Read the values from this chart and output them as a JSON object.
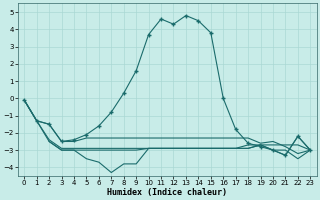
{
  "xlabel": "Humidex (Indice chaleur)",
  "bg_color": "#c8ece8",
  "grid_color": "#aad8d4",
  "line_color": "#1a6b6b",
  "xlim": [
    -0.5,
    23.5
  ],
  "ylim": [
    -4.5,
    5.5
  ],
  "yticks": [
    -4,
    -3,
    -2,
    -1,
    0,
    1,
    2,
    3,
    4,
    5
  ],
  "xticks": [
    0,
    1,
    2,
    3,
    4,
    5,
    6,
    7,
    8,
    9,
    10,
    11,
    12,
    13,
    14,
    15,
    16,
    17,
    18,
    19,
    20,
    21,
    22,
    23
  ],
  "series1_x": [
    0,
    1,
    2,
    3,
    4,
    5,
    6,
    7,
    8,
    9,
    10,
    11,
    12,
    13,
    14,
    15,
    16,
    17,
    18,
    19,
    20,
    21,
    22,
    23
  ],
  "series1_y": [
    -0.1,
    -1.3,
    -1.5,
    -2.5,
    -2.5,
    -2.3,
    -2.3,
    -2.3,
    -2.3,
    -2.3,
    -2.3,
    -2.3,
    -2.3,
    -2.3,
    -2.3,
    -2.3,
    -2.3,
    -2.3,
    -2.3,
    -2.6,
    -2.5,
    -2.8,
    -3.2,
    -3.0
  ],
  "series2_x": [
    0,
    1,
    2,
    3,
    4,
    5,
    6,
    7,
    8,
    9,
    10,
    11,
    12,
    13,
    14,
    15,
    16,
    17,
    18,
    19,
    20,
    21,
    22,
    23
  ],
  "series2_y": [
    -0.1,
    -1.3,
    -2.4,
    -2.9,
    -2.9,
    -2.9,
    -2.9,
    -2.9,
    -2.9,
    -2.9,
    -2.9,
    -2.9,
    -2.9,
    -2.9,
    -2.9,
    -2.9,
    -2.9,
    -2.9,
    -2.9,
    -2.7,
    -2.7,
    -2.7,
    -2.7,
    -3.0
  ],
  "series3_x": [
    0,
    1,
    2,
    3,
    4,
    5,
    6,
    7,
    8,
    9,
    10,
    11,
    12,
    13,
    14,
    15,
    16,
    17,
    18,
    19,
    20,
    21,
    22,
    23
  ],
  "series3_y": [
    -0.1,
    -1.3,
    -2.5,
    -3.0,
    -3.0,
    -3.5,
    -3.7,
    -4.3,
    -3.8,
    -3.8,
    -2.9,
    -2.9,
    -2.9,
    -2.9,
    -2.9,
    -2.9,
    -2.9,
    -2.9,
    -2.9,
    -2.7,
    -3.0,
    -3.3,
    -2.2,
    -3.0
  ],
  "series_main_x": [
    0,
    1,
    2,
    3,
    4,
    5,
    6,
    7,
    8,
    9,
    10,
    11,
    12,
    13,
    14,
    15,
    16,
    17,
    18,
    19,
    20,
    21,
    22,
    23
  ],
  "series_main_y": [
    -0.1,
    -1.3,
    -1.5,
    -2.5,
    -2.4,
    -2.1,
    -1.6,
    -0.8,
    0.3,
    1.6,
    3.7,
    4.6,
    4.3,
    4.8,
    4.5,
    3.8,
    0.0,
    -1.8,
    -2.6,
    -2.8,
    -3.0,
    -3.3,
    -2.2,
    -3.0
  ],
  "series4_x": [
    2,
    3,
    4,
    5,
    6,
    7,
    8,
    9,
    10,
    11,
    12,
    13,
    14,
    15,
    16,
    17,
    18,
    19,
    20,
    21,
    22,
    23
  ],
  "series4_y": [
    -2.5,
    -3.0,
    -3.0,
    -3.0,
    -3.0,
    -3.0,
    -3.0,
    -3.0,
    -2.9,
    -2.9,
    -2.9,
    -2.9,
    -2.9,
    -2.9,
    -2.9,
    -2.9,
    -2.7,
    -2.7,
    -3.0,
    -3.0,
    -3.5,
    -3.0
  ]
}
